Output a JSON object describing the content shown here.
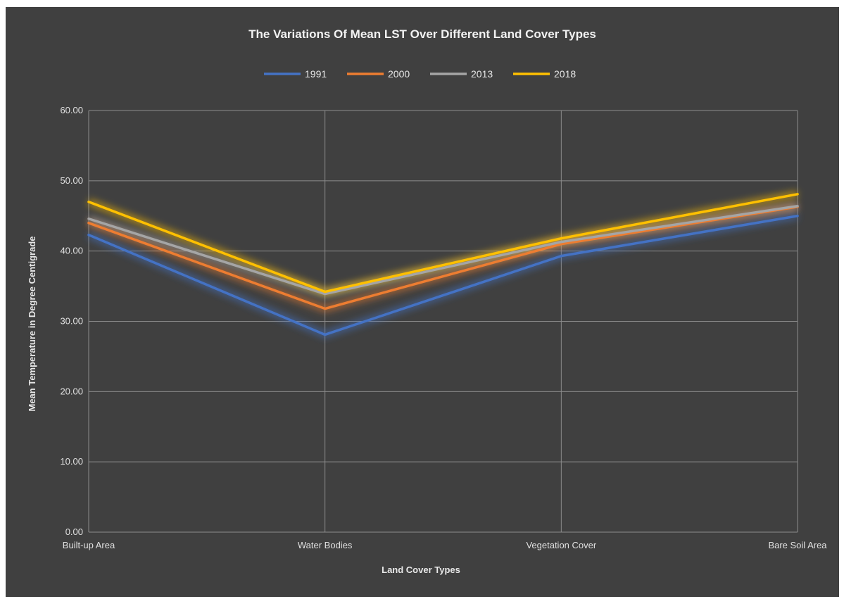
{
  "chart_data": {
    "type": "line",
    "title": "The Variations Of Mean LST Over Different Land Cover Types",
    "xlabel": "Land Cover Types",
    "ylabel": "Mean Temperature in Degree Centigrade",
    "categories": [
      "Built-up Area",
      "Water Bodies",
      "Vegetation Cover",
      "Bare Soil Area"
    ],
    "ylim": [
      0,
      60
    ],
    "yticks": [
      "0.00",
      "10.00",
      "20.00",
      "30.00",
      "40.00",
      "50.00",
      "60.00"
    ],
    "grid": true,
    "legend_position": "top",
    "series": [
      {
        "name": "1991",
        "color": "#4472c4",
        "values": [
          42.3,
          28.1,
          39.3,
          45.0
        ]
      },
      {
        "name": "2000",
        "color": "#ed7d31",
        "values": [
          44.0,
          31.8,
          41.0,
          46.3
        ]
      },
      {
        "name": "2013",
        "color": "#a5a5a5",
        "values": [
          44.6,
          33.9,
          41.3,
          46.4
        ]
      },
      {
        "name": "2018",
        "color": "#ffc000",
        "values": [
          47.0,
          34.2,
          41.8,
          48.1
        ]
      }
    ]
  }
}
